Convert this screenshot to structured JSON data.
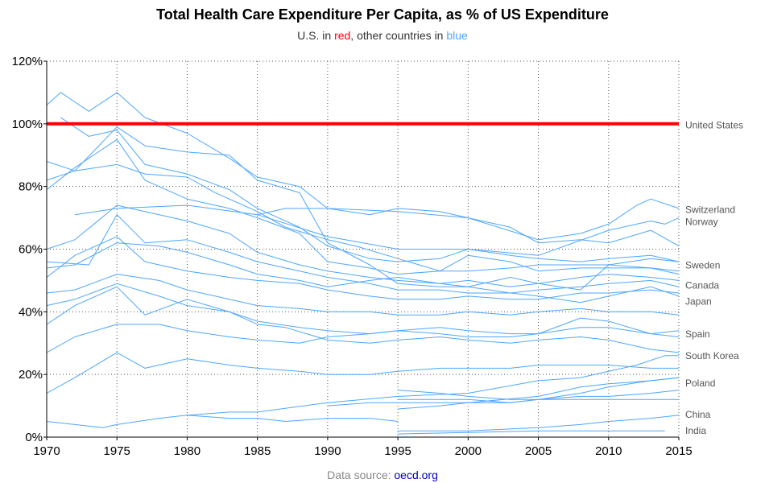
{
  "title": "Total Health Care Expenditure Per Capita, as % of US Expenditure",
  "subtitle": {
    "prefix": "U.S. in ",
    "red_word": "red",
    "middle": ", other countries in ",
    "blue_word": "blue"
  },
  "source": {
    "prefix": "Data source: ",
    "link_text": "oecd.org"
  },
  "colors": {
    "us": "#ff0000",
    "other": "#4da6ff",
    "grid": "#555555",
    "country_label": "#555555",
    "highlight_tick": "#ff0000"
  },
  "chart_data": {
    "type": "line",
    "xlim": [
      1970,
      2015
    ],
    "ylim": [
      0,
      120
    ],
    "x_ticks": [
      1970,
      1975,
      1980,
      1985,
      1990,
      1995,
      2000,
      2005,
      2010,
      2015
    ],
    "x_tick_labels": [
      "1970",
      "1975",
      "1980",
      "1985",
      "1990",
      "1995",
      "2000",
      "2005",
      "2010",
      "2015"
    ],
    "y_ticks": [
      0,
      20,
      40,
      60,
      80,
      100,
      120
    ],
    "y_tick_labels": [
      "0%",
      "20%",
      "40%",
      "60%",
      "80%",
      "100%",
      "120%"
    ],
    "grid": "dotted",
    "highlight_series": "United States",
    "country_labels": [
      {
        "text": "United States",
        "y": 99.6
      },
      {
        "text": "Switzerland",
        "y": 72.6
      },
      {
        "text": "Norway",
        "y": 68.8
      },
      {
        "text": "Sweden",
        "y": 54.8
      },
      {
        "text": "Canada",
        "y": 48.4
      },
      {
        "text": "Japan",
        "y": 43.3
      },
      {
        "text": "Spain",
        "y": 32.9
      },
      {
        "text": "South Korea",
        "y": 25.9
      },
      {
        "text": "Poland",
        "y": 17.2
      },
      {
        "text": "China",
        "y": 7.2
      },
      {
        "text": "India",
        "y": 2.0
      }
    ],
    "series": [
      {
        "name": "United States",
        "x": [
          1970,
          1975,
          1980,
          1985,
          1990,
          1995,
          2000,
          2005,
          2010,
          2015
        ],
        "values": [
          100,
          100,
          100,
          100,
          100,
          100,
          100,
          100,
          100,
          100
        ]
      },
      {
        "name": "Switzerland",
        "x": [
          1985,
          1987,
          1990,
          1995,
          2000,
          2005,
          2008,
          2010,
          2012,
          2013,
          2015
        ],
        "values": [
          71,
          73,
          73,
          72,
          70,
          63,
          65,
          68,
          74,
          76,
          73
        ]
      },
      {
        "name": "Norway",
        "x": [
          1972,
          1975,
          1980,
          1985,
          1990,
          1995,
          2000,
          2005,
          2010,
          2013,
          2014,
          2015
        ],
        "values": [
          71,
          73,
          74,
          71,
          64,
          60,
          60,
          58,
          66,
          69,
          68,
          70
        ]
      },
      {
        "name": "Sweden",
        "x": [
          1970,
          1972,
          1975,
          1977,
          1980,
          1983,
          1985,
          1988,
          1990,
          1993,
          1995,
          1998,
          2000,
          2003,
          2005,
          2008,
          2010,
          2013,
          2015
        ],
        "values": [
          88,
          85,
          99,
          93,
          91,
          90,
          82,
          78,
          62,
          55,
          49,
          48,
          48,
          51,
          49,
          47,
          55,
          57,
          56
        ]
      },
      {
        "name": "Canada",
        "x": [
          1970,
          1972,
          1975,
          1977,
          1980,
          1982,
          1985,
          1987,
          1990,
          1992,
          1995,
          1998,
          2000,
          2003,
          2005,
          2008,
          2010,
          2013,
          2015
        ],
        "values": [
          82,
          85,
          87,
          84,
          83,
          78,
          72,
          67,
          63,
          61,
          57,
          53,
          53,
          54,
          55,
          55,
          55,
          54,
          53
        ]
      },
      {
        "name": "Japan",
        "x": [
          1970,
          1972,
          1975,
          1978,
          1980,
          1983,
          1985,
          1988,
          1990,
          1993,
          1995,
          1998,
          2000,
          2003,
          2005,
          2008,
          2010,
          2013,
          2015
        ],
        "values": [
          54,
          55,
          62,
          61,
          59,
          55,
          52,
          50,
          48,
          50,
          51,
          49,
          48,
          46,
          45,
          43,
          45,
          48,
          45
        ]
      },
      {
        "name": "Spain",
        "x": [
          1970,
          1972,
          1975,
          1978,
          1980,
          1983,
          1985,
          1988,
          1990,
          1993,
          1995,
          1998,
          2000,
          2003,
          2005,
          2008,
          2010,
          2013,
          2015
        ],
        "values": [
          27,
          32,
          36,
          36,
          34,
          32,
          31,
          30,
          32,
          33,
          34,
          33,
          32,
          32,
          33,
          38,
          37,
          33,
          32
        ]
      },
      {
        "name": "South Korea",
        "x": [
          1980,
          1983,
          1985,
          1990,
          1995,
          2000,
          2005,
          2008,
          2010,
          2012,
          2014,
          2015
        ],
        "values": [
          7,
          8,
          8,
          11,
          13,
          14,
          18,
          19,
          21,
          23,
          26,
          26
        ]
      },
      {
        "name": "Poland",
        "x": [
          1990,
          1993,
          1995,
          2000,
          2005,
          2008,
          2010,
          2013,
          2015
        ],
        "values": [
          10,
          11,
          11,
          11,
          13,
          16,
          17,
          18,
          19
        ]
      },
      {
        "name": "China",
        "x": [
          1995,
          2000,
          2005,
          2008,
          2010,
          2013,
          2015
        ],
        "values": [
          2,
          2,
          3,
          4,
          5,
          6,
          7
        ]
      },
      {
        "name": "India",
        "x": [
          1995,
          2000,
          2005,
          2010,
          2014
        ],
        "values": [
          1,
          1.5,
          2,
          2,
          2
        ]
      },
      {
        "name": "",
        "x": [
          1970,
          1971,
          1973,
          1975,
          1977,
          1980,
          1983,
          1985,
          1988,
          1990,
          1993,
          1995,
          1998,
          2000,
          2003,
          2005,
          2008,
          2010,
          2013,
          2015
        ],
        "values": [
          106,
          110,
          104,
          110,
          102,
          97,
          89,
          83,
          80,
          73,
          71,
          73,
          72,
          70,
          67,
          62,
          63,
          62,
          66,
          61
        ]
      },
      {
        "name": "",
        "x": [
          1971,
          1973,
          1975,
          1977,
          1980,
          1983,
          1985,
          1988,
          1990,
          1993,
          1995,
          1998,
          2000,
          2003,
          2005,
          2008,
          2010,
          2013,
          2015
        ],
        "values": [
          102,
          96,
          98,
          87,
          84,
          79,
          73,
          67,
          61,
          57,
          56,
          57,
          60,
          58,
          57,
          56,
          57,
          58,
          56
        ]
      },
      {
        "name": "",
        "x": [
          1970,
          1972,
          1975,
          1977,
          1980,
          1983,
          1985,
          1988,
          1990,
          1993,
          1995,
          1998,
          2000,
          2003,
          2005,
          2008,
          2010,
          2013,
          2015
        ],
        "values": [
          79,
          86,
          95,
          82,
          76,
          73,
          70,
          65,
          56,
          54,
          52,
          53,
          58,
          56,
          53,
          54,
          54,
          54,
          52
        ]
      },
      {
        "name": "",
        "x": [
          1970,
          1972,
          1975,
          1978,
          1980,
          1983,
          1985,
          1988,
          1990,
          1993,
          1995,
          1998,
          2000,
          2003,
          2005,
          2008,
          2010,
          2013,
          2015
        ],
        "values": [
          60,
          63,
          74,
          71,
          69,
          65,
          59,
          55,
          53,
          51,
          50,
          49,
          50,
          48,
          49,
          51,
          52,
          51,
          50
        ]
      },
      {
        "name": "",
        "x": [
          1970,
          1973,
          1975,
          1977,
          1980,
          1983,
          1985,
          1988,
          1990,
          1993,
          1995,
          1998,
          2000,
          2003,
          2005,
          2008,
          2010,
          2013,
          2015
        ],
        "values": [
          56,
          55,
          71,
          62,
          63,
          59,
          56,
          53,
          51,
          49,
          47,
          47,
          46,
          46,
          47,
          48,
          49,
          50,
          48
        ]
      },
      {
        "name": "",
        "x": [
          1970,
          1972,
          1975,
          1977,
          1980,
          1983,
          1985,
          1988,
          1990,
          1993,
          1995,
          1998,
          2000,
          2003,
          2005,
          2008,
          2010,
          2013,
          2015
        ],
        "values": [
          51,
          58,
          64,
          56,
          53,
          51,
          50,
          49,
          47,
          45,
          44,
          44,
          45,
          44,
          44,
          46,
          46,
          47,
          46
        ]
      },
      {
        "name": "",
        "x": [
          1970,
          1972,
          1975,
          1978,
          1980,
          1983,
          1985,
          1988,
          1990,
          1993,
          1995,
          1998,
          2000,
          2003,
          2005,
          2008,
          2010,
          2013,
          2015
        ],
        "values": [
          46,
          47,
          52,
          50,
          47,
          44,
          42,
          41,
          40,
          40,
          39,
          39,
          40,
          39,
          40,
          41,
          40,
          40,
          39
        ]
      },
      {
        "name": "",
        "x": [
          1970,
          1972,
          1975,
          1978,
          1980,
          1983,
          1985,
          1988,
          1990,
          1993,
          1995,
          1998,
          2000,
          2003,
          2005,
          2008,
          2010,
          2013,
          2015
        ],
        "values": [
          42,
          44,
          49,
          45,
          42,
          40,
          37,
          35,
          34,
          33,
          34,
          35,
          34,
          33,
          33,
          35,
          35,
          33,
          34
        ]
      },
      {
        "name": "",
        "x": [
          1970,
          1972,
          1975,
          1977,
          1980,
          1983,
          1985,
          1987,
          1990,
          1993,
          1995,
          1998,
          2000,
          2003,
          2005,
          2008,
          2010,
          2013,
          2015
        ],
        "values": [
          36,
          42,
          48,
          39,
          44,
          40,
          36,
          35,
          31,
          30,
          31,
          32,
          31,
          30,
          31,
          32,
          31,
          28,
          27
        ]
      },
      {
        "name": "",
        "x": [
          1970,
          1972,
          1975,
          1977,
          1980,
          1983,
          1985,
          1988,
          1990,
          1993,
          1995,
          1998,
          2000,
          2003,
          2005,
          2008,
          2010,
          2013,
          2015
        ],
        "values": [
          14,
          19,
          27,
          22,
          25,
          23,
          22,
          21,
          20,
          20,
          21,
          22,
          22,
          22,
          23,
          23,
          23,
          22,
          22
        ]
      },
      {
        "name": "",
        "x": [
          1970,
          1972,
          1974,
          1975,
          1978,
          1980,
          1983,
          1985,
          1987,
          1990,
          1993,
          1995
        ],
        "values": [
          5,
          4,
          3,
          4,
          6,
          7,
          6,
          6,
          5,
          6,
          6,
          5
        ]
      },
      {
        "name": "",
        "x": [
          1995,
          1998,
          2000,
          2003,
          2005,
          2008,
          2010,
          2013,
          2015
        ],
        "values": [
          15,
          14,
          13,
          12,
          12,
          14,
          16,
          18,
          19
        ]
      },
      {
        "name": "",
        "x": [
          1995,
          1998,
          2000,
          2003,
          2005,
          2008,
          2010,
          2013,
          2015
        ],
        "values": [
          12,
          12,
          12,
          11,
          12,
          13,
          13,
          14,
          15
        ]
      },
      {
        "name": "",
        "x": [
          1995,
          1998,
          2000,
          2003,
          2005,
          2008,
          2010,
          2013,
          2015
        ],
        "values": [
          9,
          10,
          11,
          11,
          12,
          12,
          12,
          12,
          12
        ]
      }
    ]
  }
}
